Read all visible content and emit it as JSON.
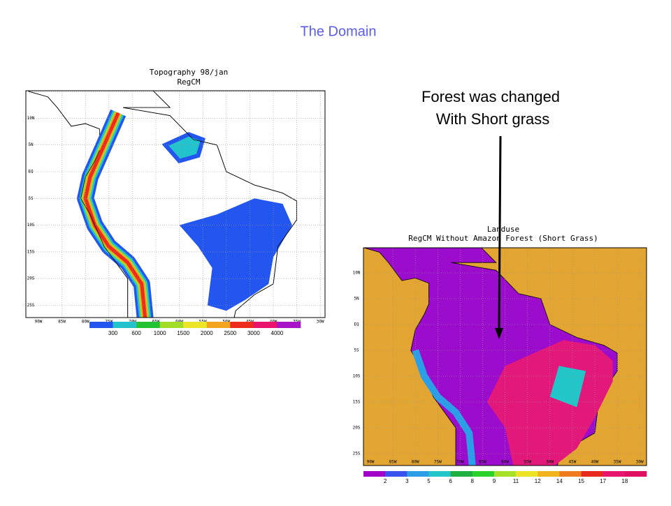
{
  "title": "The Domain",
  "annotation": [
    "Forest was changed",
    "With Short grass"
  ],
  "maps": [
    {
      "title": [
        "Topography 98/jan",
        "RegCM"
      ],
      "lat_labels": [
        "10N",
        "5N",
        "EQ",
        "5S",
        "10S",
        "15S",
        "20S",
        "25S"
      ],
      "lon_labels": [
        "90W",
        "85W",
        "80W",
        "75W",
        "70W",
        "65W",
        "60W",
        "55W",
        "50W",
        "45W",
        "40W",
        "35W",
        "30W"
      ],
      "colorbar": {
        "labels": [
          "300",
          "600",
          "1000",
          "1500",
          "2000",
          "2500",
          "3000",
          "4000"
        ],
        "colors": [
          "#2356ee",
          "#22c3cc",
          "#22c232",
          "#a0dc28",
          "#ece628",
          "#f2a41e",
          "#ee2c1e",
          "#e8146e",
          "#a614c8"
        ]
      }
    },
    {
      "title": [
        "Landuse",
        "RegCM Without Amazon Forest (Short Grass)"
      ],
      "lat_labels": [
        "10N",
        "5N",
        "EQ",
        "5S",
        "10S",
        "15S",
        "20S",
        "25S"
      ],
      "lon_labels": [
        "90W",
        "85W",
        "80W",
        "75W",
        "70W",
        "65W",
        "60W",
        "55W",
        "50W",
        "45W",
        "40W",
        "35W",
        "30W"
      ],
      "colorbar": {
        "labels": [
          "2",
          "3",
          "5",
          "6",
          "8",
          "9",
          "11",
          "12",
          "14",
          "15",
          "17",
          "18"
        ],
        "colors": [
          "#a000c8",
          "#3a52ee",
          "#2c9ee8",
          "#22c6c8",
          "#1eb040",
          "#2ad22a",
          "#a8e028",
          "#ece424",
          "#f2b41e",
          "#f07a1e",
          "#e82a1e",
          "#e8146e",
          "#e01060"
        ]
      }
    }
  ]
}
